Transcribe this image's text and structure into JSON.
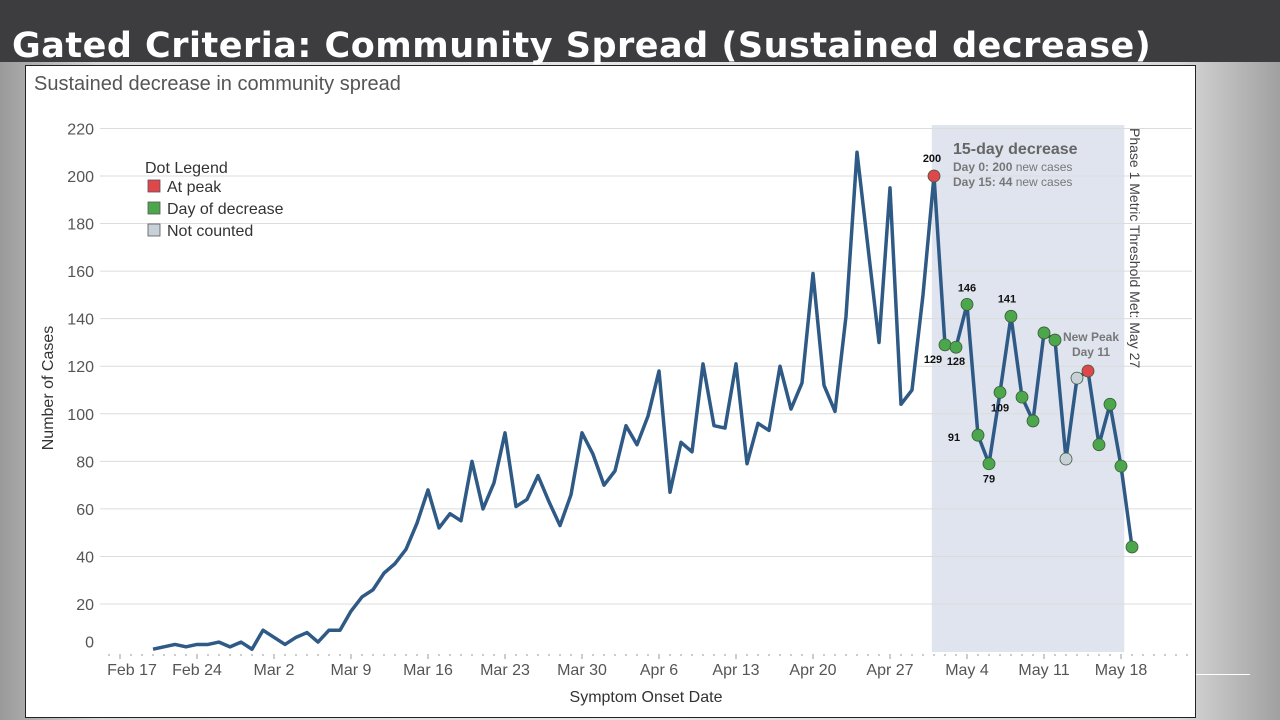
{
  "slide": {
    "title": "Gated Criteria: Community Spread (Sustained decrease)"
  },
  "colors": {
    "line": "#2f5a86",
    "peak": "#e0474c",
    "decrease": "#4ca64c",
    "not_counted": "#c8d0d8",
    "shade": "#dfe4ef",
    "grid": "#dcdcdc"
  },
  "chart_data": {
    "type": "line",
    "title": "Sustained decrease in community spread",
    "xlabel": "Symptom Onset Date",
    "ylabel": "Number of Cases",
    "ylim": [
      0,
      220
    ],
    "yticks": [
      0,
      20,
      40,
      60,
      80,
      100,
      120,
      140,
      160,
      180,
      200,
      220
    ],
    "xtick_labels": [
      "Feb 17",
      "Feb 24",
      "Mar 2",
      "Mar 9",
      "Mar 16",
      "Mar 23",
      "Mar 30",
      "Apr 6",
      "Apr 13",
      "Apr 20",
      "Apr 27",
      "May 4",
      "May 11",
      "May 18"
    ],
    "xtick_days": [
      0,
      7,
      14,
      21,
      28,
      35,
      42,
      49,
      56,
      63,
      70,
      77,
      84,
      91
    ],
    "x_start_day": 3,
    "x_start_label": "Feb 20",
    "values": [
      1,
      2,
      3,
      2,
      3,
      3,
      4,
      2,
      4,
      1,
      9,
      6,
      3,
      6,
      8,
      4,
      9,
      9,
      17,
      23,
      26,
      33,
      37,
      43,
      54,
      68,
      52,
      58,
      55,
      80,
      60,
      71,
      92,
      61,
      64,
      74,
      63,
      53,
      66,
      92,
      83,
      70,
      76,
      95,
      87,
      99,
      118,
      67,
      88,
      84,
      121,
      95,
      94,
      121,
      79,
      96,
      93,
      120,
      102,
      113,
      159,
      112,
      101,
      141,
      210,
      170,
      130,
      195,
      104,
      110,
      150,
      200,
      129,
      128,
      146,
      91,
      79,
      109,
      141,
      107,
      97,
      134,
      131,
      81,
      115,
      118,
      87,
      104,
      78,
      44
    ],
    "dots": [
      {
        "day": 74,
        "type": "peak",
        "label": "200"
      },
      {
        "day": 75,
        "type": "decrease",
        "label": "129"
      },
      {
        "day": 76,
        "type": "decrease",
        "label": "128"
      },
      {
        "day": 77,
        "type": "decrease",
        "label": "146"
      },
      {
        "day": 78,
        "type": "decrease",
        "label": "91"
      },
      {
        "day": 79,
        "type": "decrease",
        "label": "79"
      },
      {
        "day": 80,
        "type": "decrease",
        "label": "109"
      },
      {
        "day": 81,
        "type": "decrease",
        "label": "141"
      },
      {
        "day": 82,
        "type": "decrease",
        "label": ""
      },
      {
        "day": 83,
        "type": "decrease",
        "label": ""
      },
      {
        "day": 84,
        "type": "decrease",
        "label": ""
      },
      {
        "day": 85,
        "type": "decrease",
        "label": ""
      },
      {
        "day": 86,
        "type": "not_counted",
        "label": ""
      },
      {
        "day": 87,
        "type": "not_counted",
        "label": ""
      },
      {
        "day": 88,
        "type": "peak",
        "label": ""
      },
      {
        "day": 89,
        "type": "decrease",
        "label": ""
      },
      {
        "day": 90,
        "type": "decrease",
        "label": ""
      },
      {
        "day": 91,
        "type": "decrease",
        "label": ""
      },
      {
        "day": 92,
        "type": "decrease",
        "label": ""
      }
    ],
    "shaded_range_days": [
      73.8,
      91.3
    ],
    "legend": {
      "title": "Dot Legend",
      "placement": "top-left",
      "items": [
        {
          "type": "peak",
          "label": "At peak"
        },
        {
          "type": "decrease",
          "label": "Day of decrease"
        },
        {
          "type": "not_counted",
          "label": "Not counted"
        }
      ]
    },
    "annotations": {
      "box_title": "15-day decrease",
      "day0_prefix": "Day 0: 200",
      "day0_suffix": " new cases",
      "day15_prefix": "Day 15: 44",
      "day15_suffix": " new cases",
      "new_peak_line1": "New Peak",
      "new_peak_line2": "Day 11",
      "threshold": "Phase 1 Metric Threshold Met: May 27"
    }
  }
}
